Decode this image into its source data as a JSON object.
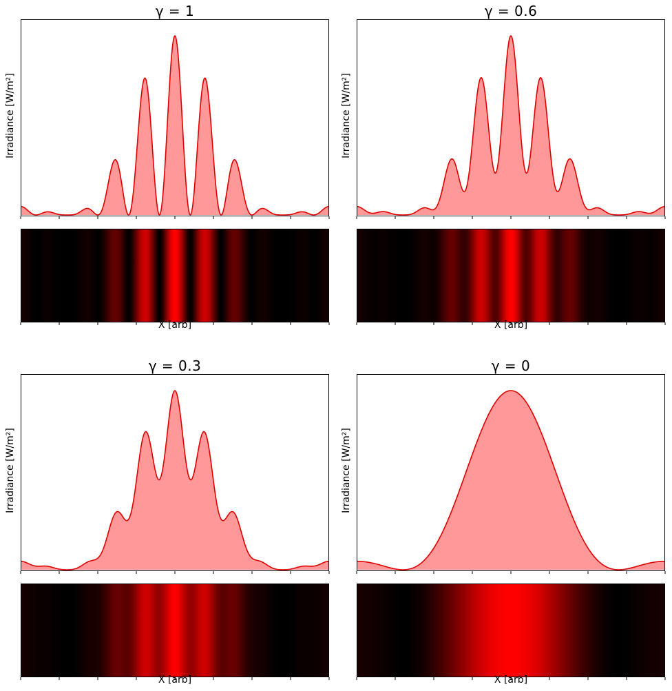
{
  "chart_data": [
    {
      "type": "area",
      "title": "γ = 1",
      "ylabel": "Irradiance [W/m²]",
      "xlabel": "X [arb]",
      "gamma": 1,
      "fringe_count": 10,
      "secondary_ratio": 0.047,
      "colors": {
        "line": "#e00000",
        "fill": "#ff9999",
        "image_peak": "#ff0000",
        "image_bg": "#000000"
      },
      "x_ticks": 9,
      "y_ticks": "none"
    },
    {
      "type": "area",
      "title": "γ = 0.6",
      "ylabel": "Irradiance [W/m²]",
      "xlabel": "X [arb]",
      "gamma": 0.6,
      "fringe_count": 10,
      "secondary_ratio": 0.047,
      "colors": {
        "line": "#e00000",
        "fill": "#ff9999",
        "image_peak": "#ff0000",
        "image_bg": "#000000"
      },
      "x_ticks": 9,
      "y_ticks": "none"
    },
    {
      "type": "area",
      "title": "γ = 0.3",
      "ylabel": "Irradiance [W/m²]",
      "xlabel": "X [arb]",
      "gamma": 0.3,
      "fringe_count": 10,
      "secondary_ratio": 0.047,
      "colors": {
        "line": "#e00000",
        "fill": "#ff9999",
        "image_peak": "#ff0000",
        "image_bg": "#000000"
      },
      "x_ticks": 9,
      "y_ticks": "none"
    },
    {
      "type": "area",
      "title": "γ = 0",
      "ylabel": "Irradiance [W/m²]",
      "xlabel": "X [arb]",
      "gamma": 0,
      "fringe_count": 10,
      "secondary_ratio": 0.047,
      "colors": {
        "line": "#e00000",
        "fill": "#ff9999",
        "image_peak": "#ff0000",
        "image_bg": "#000000"
      },
      "x_ticks": 9,
      "y_ticks": "none"
    }
  ]
}
